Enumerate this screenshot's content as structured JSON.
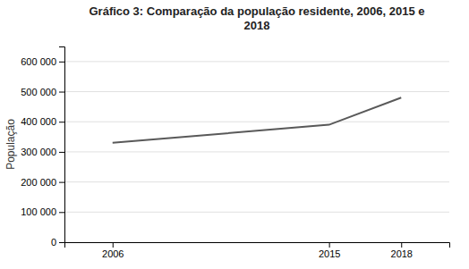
{
  "chart_data": {
    "type": "line",
    "title": "Gráfico 3: Comparação da população residente, 2006, 2015 e\n2018",
    "ylabel": "População",
    "x": [
      2006,
      2015,
      2018
    ],
    "values": [
      330000,
      390000,
      480000
    ],
    "color": "#595959",
    "xlim": [
      2004,
      2020
    ],
    "xticks": [
      2006,
      2015,
      2018
    ],
    "ylim": [
      0,
      650000
    ],
    "yticks": [
      0,
      {
        "value": 100000,
        "label": "100 000"
      },
      {
        "value": 200000,
        "label": "200 000"
      },
      {
        "value": 300000,
        "label": "300 000"
      },
      {
        "value": 400000,
        "label": "400 000"
      },
      {
        "value": 500000,
        "label": "500 000"
      },
      {
        "value": 600000,
        "label": "600 000"
      }
    ],
    "grid": true
  }
}
